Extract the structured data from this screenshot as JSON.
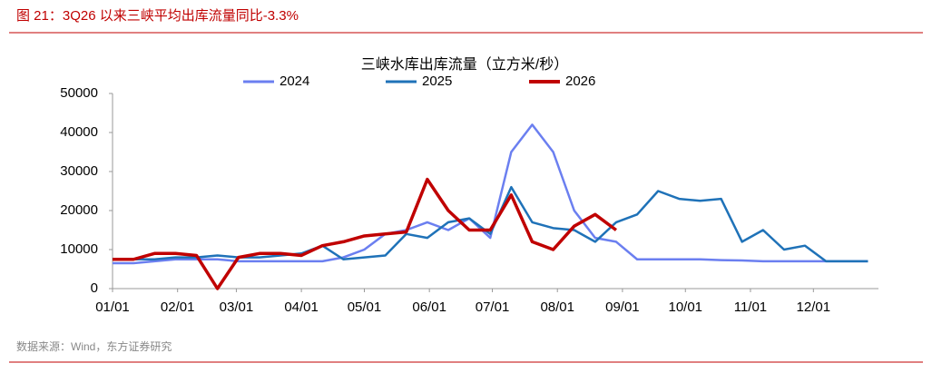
{
  "header": "图 21：3Q26 以来三峡平均出库流量同比-3.3%",
  "source": "数据来源：Wind，东方证券研究",
  "chart_data": {
    "type": "line",
    "title": "三峡水库出库流量（立方米/秒）",
    "x": [
      0,
      10,
      20,
      30,
      40,
      50,
      60,
      70,
      80,
      90,
      100,
      110,
      120,
      130,
      140,
      150,
      160,
      170,
      180,
      190,
      200,
      210,
      220,
      230,
      240,
      250,
      260,
      270,
      280,
      290,
      300,
      310,
      320,
      330,
      340,
      350,
      360
    ],
    "xlim": [
      0,
      365
    ],
    "xticks": [
      {
        "value": 0,
        "label": "01/01"
      },
      {
        "value": 31,
        "label": "02/01"
      },
      {
        "value": 59,
        "label": "03/01"
      },
      {
        "value": 90,
        "label": "04/01"
      },
      {
        "value": 120,
        "label": "05/01"
      },
      {
        "value": 151,
        "label": "06/01"
      },
      {
        "value": 181,
        "label": "07/01"
      },
      {
        "value": 212,
        "label": "08/01"
      },
      {
        "value": 243,
        "label": "09/01"
      },
      {
        "value": 273,
        "label": "10/01"
      },
      {
        "value": 304,
        "label": "11/01"
      },
      {
        "value": 334,
        "label": "12/01"
      }
    ],
    "ylim": [
      0,
      50000
    ],
    "yticks": [
      0,
      10000,
      20000,
      30000,
      40000,
      50000
    ],
    "series": [
      {
        "name": "2024",
        "color": "#6b7ff0",
        "values": [
          6500,
          6500,
          7000,
          7500,
          7500,
          7500,
          7000,
          7000,
          7000,
          7000,
          7000,
          8000,
          10000,
          14000,
          15000,
          17000,
          15000,
          18000,
          13000,
          35000,
          42000,
          35000,
          20000,
          13000,
          12000,
          7500,
          7500,
          7500,
          7500,
          7300,
          7200,
          7000,
          7000,
          7000,
          7000,
          7000,
          7000
        ]
      },
      {
        "name": "2025",
        "color": "#1f72b8",
        "values": [
          7500,
          7500,
          7500,
          8000,
          8000,
          8500,
          8000,
          8000,
          8500,
          9000,
          11000,
          7500,
          8000,
          8500,
          14000,
          13000,
          17000,
          18000,
          14000,
          26000,
          17000,
          15500,
          15000,
          12000,
          17000,
          19000,
          25000,
          23000,
          22500,
          23000,
          12000,
          15000,
          10000,
          11000,
          7000,
          7000,
          7000
        ]
      },
      {
        "name": "2026",
        "color": "#c00000",
        "values": [
          7500,
          7500,
          9000,
          9000,
          8500,
          0,
          8000,
          9000,
          9000,
          8500,
          11000,
          12000,
          13500,
          14000,
          14500,
          28000,
          20000,
          15000,
          15000,
          24000,
          12000,
          10000,
          16000,
          19000,
          15000,
          null,
          null,
          null,
          null,
          null,
          null,
          null,
          null,
          null,
          null,
          null,
          null
        ]
      }
    ]
  }
}
